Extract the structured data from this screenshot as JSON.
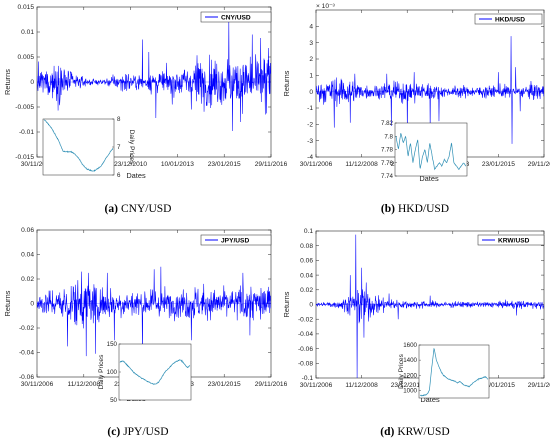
{
  "chart_data": [
    {
      "type": "line",
      "panel": "a",
      "caption_letter": "(a)",
      "caption_text": "CNY/USD",
      "legend": "CNY/USD",
      "series_color": "#0000ff",
      "xlabel": "Dates",
      "ylabel": "Returns",
      "x_ticks": [
        "30/11/2006",
        "11/12/2008",
        "23/12/2010",
        "10/01/2013",
        "23/01/2015",
        "29/11/2016"
      ],
      "ylim": [
        -0.015,
        0.015
      ],
      "y_ticks": [
        0.015,
        0.01,
        0.005,
        0,
        -0.005,
        -0.01,
        -0.015
      ],
      "y_tick_labels": [
        "0.015",
        "0.01",
        "0.005",
        "0",
        "-0.005",
        "-0.01",
        "-0.015"
      ],
      "exponent_label": "",
      "volatility_profile": [
        0.0022,
        0.0026,
        0.003,
        0.0012,
        0.0006,
        0.0004,
        0.0008,
        0.0014,
        0.0012,
        0.0014,
        0.0016,
        0.0018,
        0.0026,
        0.004,
        0.0034,
        0.0036,
        0.0038,
        0.0034,
        0.0042,
        0.004
      ],
      "spikes": [
        [
          0.45,
          0.0085
        ],
        [
          0.478,
          0.006
        ],
        [
          0.508,
          -0.0072
        ],
        [
          0.578,
          -0.0045
        ],
        [
          0.82,
          0.0125
        ],
        [
          0.835,
          -0.0098
        ],
        [
          0.87,
          -0.008
        ],
        [
          0.92,
          0.0095
        ],
        [
          0.955,
          0.0088
        ],
        [
          0.975,
          -0.0065
        ],
        [
          0.99,
          0.0068
        ]
      ],
      "inset": {
        "ylabel": "Daily Prices",
        "ylim": [
          6,
          8
        ],
        "y_ticks": [
          6,
          7,
          8
        ],
        "y_tick_labels": [
          "6",
          "7",
          "8"
        ],
        "tick_side": "right",
        "prices": [
          7.98,
          7.9,
          7.8,
          7.7,
          7.55,
          7.4,
          7.25,
          7.05,
          6.85,
          6.83,
          6.83,
          6.83,
          6.8,
          6.75,
          6.65,
          6.55,
          6.4,
          6.3,
          6.22,
          6.18,
          6.15,
          6.14,
          6.2,
          6.25,
          6.32,
          6.45,
          6.6,
          6.7,
          6.85,
          6.95
        ]
      }
    },
    {
      "type": "line",
      "panel": "b",
      "caption_letter": "(b)",
      "caption_text": "HKD/USD",
      "legend": "HKD/USD",
      "series_color": "#0000ff",
      "xlabel": "Dates",
      "ylabel": "Returns",
      "x_ticks": [
        "30/11/2006",
        "11/12/2008",
        "23/12/2010",
        "10/01/2013",
        "23/01/2015",
        "29/11/2016"
      ],
      "ylim": [
        -0.004,
        0.005
      ],
      "y_ticks": [
        0.004,
        0.003,
        0.002,
        0.001,
        0,
        -0.001,
        -0.002,
        -0.003,
        -0.004
      ],
      "y_tick_labels": [
        "4",
        "3",
        "2",
        "1",
        "0",
        "-1",
        "-2",
        "-3",
        "-4"
      ],
      "exponent_label": "× 10⁻³",
      "volatility_profile": [
        0.0004,
        0.0006,
        0.0007,
        0.0006,
        0.0003,
        0.0003,
        0.0004,
        0.0005,
        0.0005,
        0.0005,
        0.0003,
        0.0002,
        0.0003,
        0.0002,
        0.0003,
        0.0003,
        0.0003,
        0.0002,
        0.0004,
        0.0003
      ],
      "spikes": [
        [
          0.08,
          -0.0022
        ],
        [
          0.15,
          -0.0019
        ],
        [
          0.17,
          0.0011
        ],
        [
          0.31,
          0.0011
        ],
        [
          0.33,
          -0.0021
        ],
        [
          0.4,
          -0.0025
        ],
        [
          0.43,
          0.0012
        ],
        [
          0.5,
          -0.0023
        ],
        [
          0.54,
          -0.0018
        ],
        [
          0.8,
          0.0012
        ],
        [
          0.855,
          0.0034
        ],
        [
          0.86,
          -0.0032
        ],
        [
          0.875,
          0.0015
        ],
        [
          0.895,
          -0.0012
        ]
      ],
      "inset": {
        "ylabel": "",
        "ylim": [
          7.74,
          7.82
        ],
        "y_ticks": [
          7.82,
          7.8,
          7.78,
          7.76,
          7.74
        ],
        "y_tick_labels": [
          "7.82",
          "7.8",
          "7.78",
          "7.76",
          "7.74"
        ],
        "tick_side": "left",
        "prices": [
          7.8,
          7.78,
          7.805,
          7.79,
          7.8,
          7.77,
          7.79,
          7.76,
          7.78,
          7.795,
          7.75,
          7.77,
          7.78,
          7.76,
          7.79,
          7.77,
          7.75,
          7.755,
          7.76,
          7.755,
          7.765,
          7.76,
          7.77,
          7.79,
          7.76,
          7.755,
          7.75,
          7.755,
          7.76,
          7.755
        ]
      }
    },
    {
      "type": "line",
      "panel": "c",
      "caption_letter": "(c)",
      "caption_text": "JPY/USD",
      "legend": "JPY/USD",
      "series_color": "#0000ff",
      "xlabel": "Dates",
      "ylabel": "Returns",
      "x_ticks": [
        "30/11/2006",
        "11/12/2008",
        "23/12/2010",
        "10/01/2013",
        "23/01/2015",
        "29/11/2016"
      ],
      "ylim": [
        -0.06,
        0.06
      ],
      "y_ticks": [
        0.06,
        0.04,
        0.02,
        0,
        -0.02,
        -0.04,
        -0.06
      ],
      "y_tick_labels": [
        "0.06",
        "0.04",
        "0.02",
        "0",
        "-0.02",
        "-0.04",
        "-0.06"
      ],
      "exponent_label": "",
      "volatility_profile": [
        0.006,
        0.008,
        0.01,
        0.014,
        0.016,
        0.012,
        0.01,
        0.009,
        0.008,
        0.008,
        0.009,
        0.008,
        0.01,
        0.011,
        0.009,
        0.009,
        0.01,
        0.012,
        0.011,
        0.01
      ],
      "spikes": [
        [
          0.13,
          -0.035
        ],
        [
          0.19,
          0.026
        ],
        [
          0.21,
          -0.043
        ],
        [
          0.22,
          0.025
        ],
        [
          0.25,
          -0.041
        ],
        [
          0.3,
          0.025
        ],
        [
          0.33,
          -0.03
        ],
        [
          0.45,
          -0.042
        ],
        [
          0.5,
          0.028
        ],
        [
          0.53,
          0.03
        ],
        [
          0.66,
          -0.03
        ],
        [
          0.88,
          0.025
        ],
        [
          0.91,
          -0.026
        ]
      ],
      "inset": {
        "ylabel": "Daily Prices",
        "ylim": [
          50,
          150
        ],
        "y_ticks": [
          50,
          100,
          150
        ],
        "y_tick_labels": [
          "50",
          "100",
          "150"
        ],
        "tick_side": "left",
        "prices": [
          118,
          120,
          117,
          112,
          108,
          103,
          98,
          95,
          92,
          89,
          87,
          84,
          82,
          80,
          78,
          79,
          82,
          88,
          96,
          102,
          106,
          110,
          115,
          118,
          120,
          122,
          118,
          112,
          108,
          112
        ]
      }
    },
    {
      "type": "line",
      "panel": "d",
      "caption_letter": "(d)",
      "caption_text": "KRW/USD",
      "legend": "KRW/USD",
      "series_color": "#0000ff",
      "xlabel": "Dates",
      "ylabel": "Returns",
      "x_ticks": [
        "30/11/2006",
        "11/12/2008",
        "23/12/2010",
        "10/01/2013",
        "23/01/2015",
        "29/11/2016"
      ],
      "ylim": [
        -0.1,
        0.1
      ],
      "y_ticks": [
        0.1,
        0.08,
        0.06,
        0.04,
        0.02,
        0,
        -0.02,
        -0.04,
        -0.06,
        -0.08,
        -0.1
      ],
      "y_tick_labels": [
        "0.1",
        "0.08",
        "0.06",
        "0.04",
        "0.02",
        "0",
        "-0.02",
        "-0.04",
        "-0.06",
        "-0.08",
        "-0.1"
      ],
      "exponent_label": "",
      "volatility_profile": [
        0.002,
        0.003,
        0.004,
        0.012,
        0.02,
        0.01,
        0.006,
        0.005,
        0.004,
        0.004,
        0.003,
        0.003,
        0.003,
        0.003,
        0.003,
        0.003,
        0.004,
        0.004,
        0.004,
        0.004
      ],
      "spikes": [
        [
          0.15,
          0.04
        ],
        [
          0.175,
          0.095
        ],
        [
          0.18,
          -0.1
        ],
        [
          0.2,
          0.05
        ],
        [
          0.21,
          -0.045
        ],
        [
          0.22,
          0.03
        ],
        [
          0.32,
          0.015
        ],
        [
          0.36,
          -0.02
        ],
        [
          0.5,
          0.012
        ],
        [
          0.88,
          -0.015
        ]
      ],
      "inset": {
        "ylabel": "Daily Prices",
        "ylim": [
          900,
          1600
        ],
        "y_ticks": [
          1000,
          1200,
          1400,
          1600
        ],
        "y_tick_labels": [
          "1000",
          "1200",
          "1400",
          "1600"
        ],
        "tick_side": "left",
        "prices": [
          935,
          930,
          940,
          945,
          1000,
          1300,
          1560,
          1400,
          1320,
          1250,
          1200,
          1180,
          1150,
          1140,
          1130,
          1120,
          1100,
          1120,
          1090,
          1070,
          1060,
          1050,
          1080,
          1110,
          1130,
          1150,
          1160,
          1170,
          1180,
          1150
        ]
      }
    }
  ]
}
